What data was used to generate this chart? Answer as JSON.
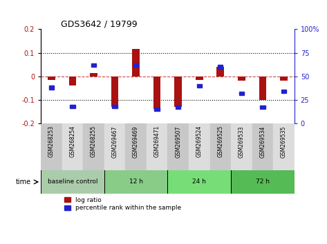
{
  "title": "GDS3642 / 19799",
  "samples": [
    "GSM268253",
    "GSM268254",
    "GSM268255",
    "GSM269467",
    "GSM269469",
    "GSM269471",
    "GSM269507",
    "GSM269524",
    "GSM269525",
    "GSM269533",
    "GSM269534",
    "GSM269535"
  ],
  "log_ratio": [
    -0.015,
    -0.04,
    0.015,
    -0.13,
    0.115,
    -0.14,
    -0.13,
    -0.015,
    0.04,
    -0.02,
    -0.1,
    -0.02
  ],
  "percentile": [
    38,
    18,
    62,
    18,
    62,
    15,
    17,
    40,
    60,
    32,
    17,
    34
  ],
  "ylim_left": [
    -0.2,
    0.2
  ],
  "ylim_right": [
    0,
    100
  ],
  "yticks_left": [
    -0.2,
    -0.1,
    0.0,
    0.1,
    0.2
  ],
  "yticks_right": [
    0,
    25,
    50,
    75,
    100
  ],
  "bar_color": "#AA1111",
  "dot_color": "#2222CC",
  "groups": [
    {
      "label": "baseline control",
      "start": 0,
      "end": 3,
      "color": "#AADDAA"
    },
    {
      "label": "12 h",
      "start": 3,
      "end": 6,
      "color": "#88CC88"
    },
    {
      "label": "24 h",
      "start": 6,
      "end": 9,
      "color": "#77DD77"
    },
    {
      "label": "72 h",
      "start": 9,
      "end": 12,
      "color": "#55BB55"
    }
  ],
  "group_bg_colors": [
    "#C8C8C8",
    "#DDDDDD"
  ],
  "zero_line_color": "#CC4444",
  "grid_color": "#000000",
  "legend_items": [
    {
      "label": "log ratio",
      "color": "#AA1111"
    },
    {
      "label": "percentile rank within the sample",
      "color": "#2222CC"
    }
  ]
}
